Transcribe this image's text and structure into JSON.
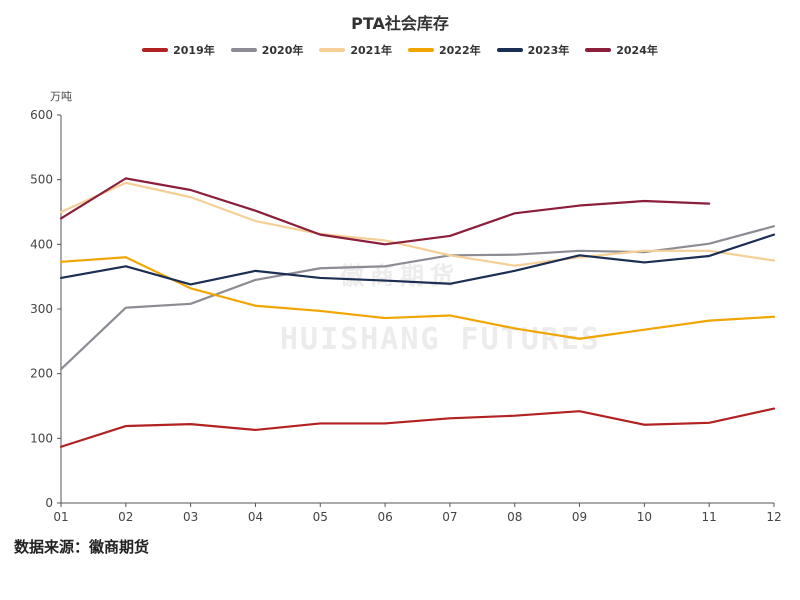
{
  "chart_data": {
    "type": "line",
    "title": "PTA社会库存",
    "ylabel": "万吨",
    "xlabel": "",
    "ylim": [
      0,
      600
    ],
    "yticks": [
      0,
      100,
      200,
      300,
      400,
      500,
      600
    ],
    "categories": [
      "01",
      "02",
      "03",
      "04",
      "05",
      "06",
      "07",
      "08",
      "09",
      "10",
      "11",
      "12"
    ],
    "legend_position": "top-center",
    "series": [
      {
        "name": "2019年",
        "color": "#b22222",
        "values": [
          87,
          119,
          122,
          113,
          123,
          123,
          131,
          135,
          142,
          121,
          124,
          146
        ]
      },
      {
        "name": "2020年",
        "color": "#8c8c94",
        "values": [
          207,
          302,
          308,
          345,
          363,
          366,
          383,
          384,
          390,
          388,
          401,
          428
        ]
      },
      {
        "name": "2021年",
        "color": "#f5cf95",
        "values": [
          450,
          495,
          473,
          436,
          416,
          406,
          383,
          367,
          380,
          390,
          390,
          375
        ]
      },
      {
        "name": "2022年",
        "color": "#f0a500",
        "values": [
          373,
          380,
          332,
          305,
          297,
          286,
          290,
          270,
          254,
          268,
          282,
          288
        ]
      },
      {
        "name": "2023年",
        "color": "#1b2e54",
        "values": [
          348,
          366,
          338,
          359,
          348,
          344,
          339,
          359,
          383,
          372,
          382,
          415
        ]
      },
      {
        "name": "2024年",
        "color": "#8b1e3a",
        "values": [
          440,
          502,
          484,
          452,
          415,
          400,
          413,
          448,
          460,
          467,
          463,
          null
        ]
      }
    ]
  },
  "source_text": "数据来源：徽商期货",
  "watermark": {
    "cn": "徽商期货",
    "en": "HUISHANG FUTURES"
  }
}
